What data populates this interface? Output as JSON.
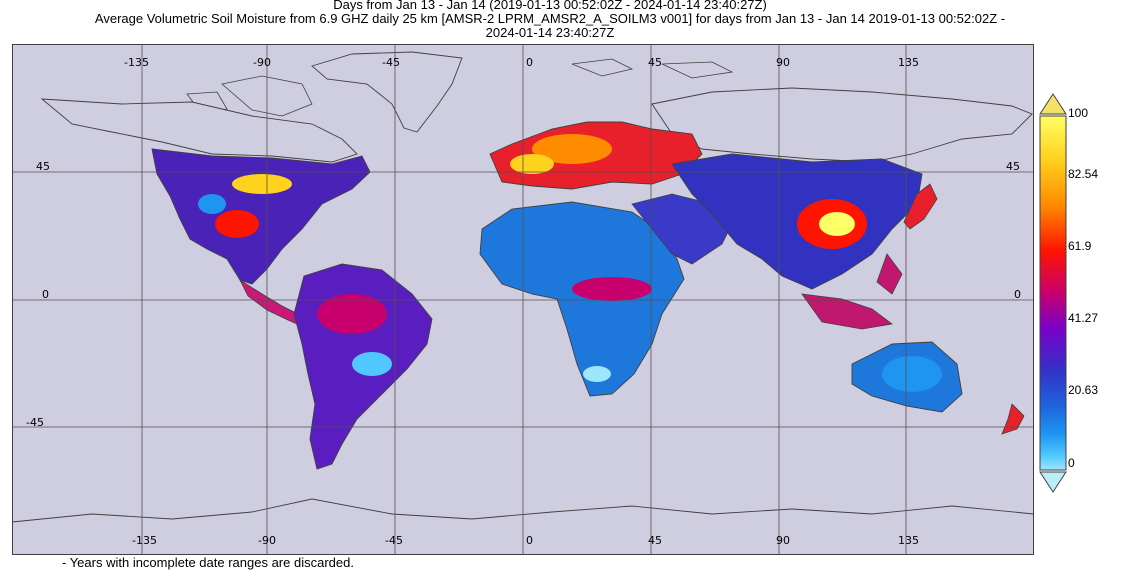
{
  "title_lines": [
    "Days from Jan 13 - Jan 14 (2019-01-13 00:52:02Z - 2024-01-14 23:40:27Z)",
    "Average Volumetric Soil Moisture from 6.9 GHZ daily 25 km [AMSR-2 LPRM_AMSR2_A_SOILM3 v001] for days from Jan 13 - Jan 14 2019-01-13 00:52:02Z -",
    "2024-01-14 23:40:27Z"
  ],
  "lon_ticks": [
    "-135",
    "-90",
    "-45",
    "0",
    "45",
    "90",
    "135"
  ],
  "lat_ticks": [
    "45",
    "0",
    "-45"
  ],
  "colorbar": {
    "labels": [
      "100",
      "82.54",
      "61.9",
      "41.27",
      "20.63",
      "0"
    ],
    "colors": [
      "#ffff66",
      "#ffd21e",
      "#ff8c00",
      "#ff1400",
      "#c8006e",
      "#7a00c8",
      "#3232c8",
      "#1e64dc",
      "#1e96f0",
      "#50c8ff",
      "#9ee6ff"
    ]
  },
  "footnote": "- Years with incomplete date ranges are discarded.",
  "colors": {
    "ocean": "#cfcde0",
    "grid": "#505050",
    "coast": "#404040"
  }
}
